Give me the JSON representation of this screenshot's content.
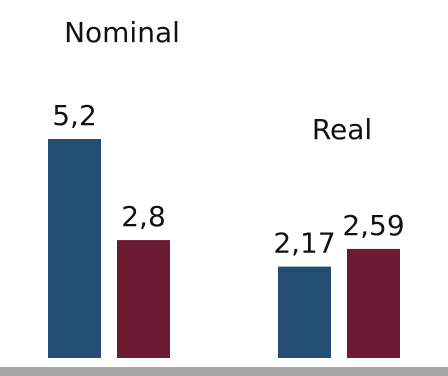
{
  "chart_data": {
    "type": "bar",
    "categories": [
      "Nominal",
      "Real"
    ],
    "series": [
      {
        "values": [
          5.2,
          2.17
        ],
        "labels": [
          "5,2",
          "2,17"
        ],
        "color": "#224e74"
      },
      {
        "values": [
          2.8,
          2.59
        ],
        "labels": [
          "2,8",
          "2,59"
        ],
        "color": "#6b1a32"
      }
    ],
    "ylim": [
      0,
      5.2
    ],
    "baseline_color": "#a6a6a6",
    "grid": false,
    "legend": "none"
  }
}
